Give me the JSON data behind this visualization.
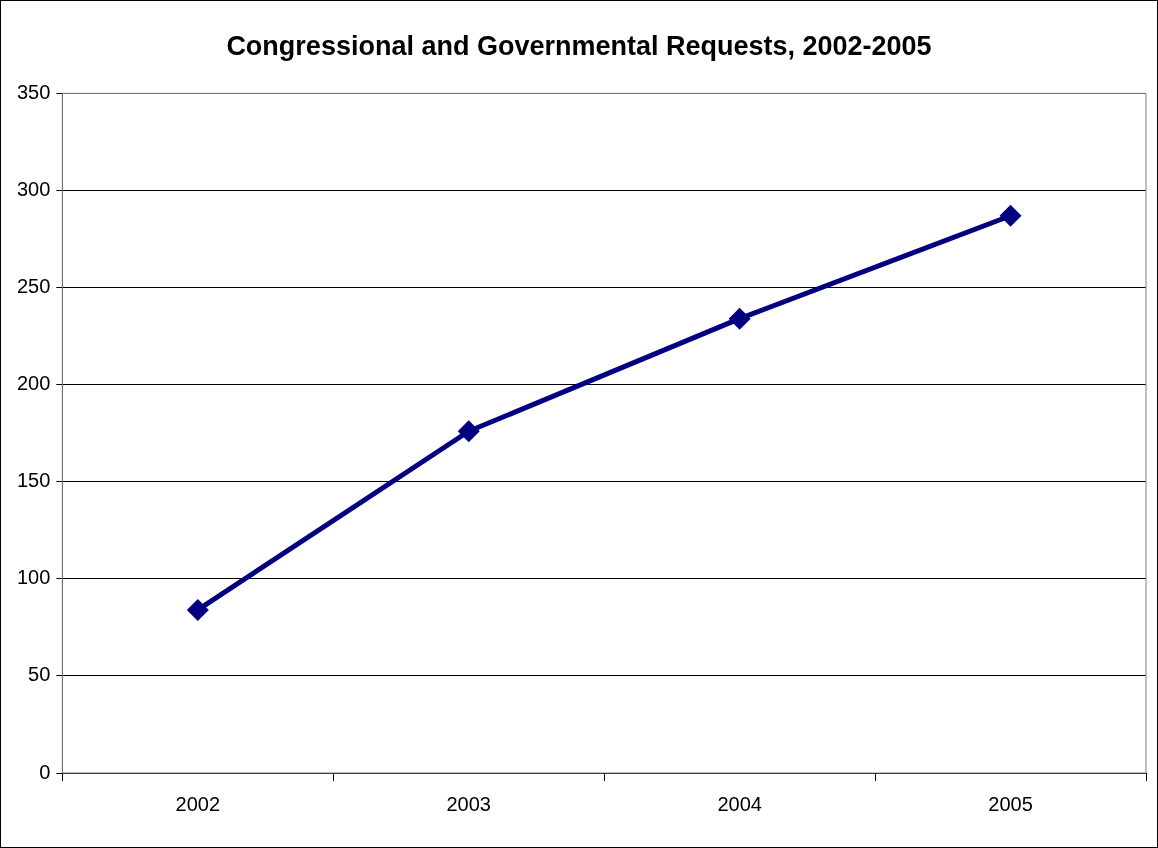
{
  "chart_data": {
    "type": "line",
    "title": "Congressional and Governmental Requests, 2002-2005",
    "categories": [
      "2002",
      "2003",
      "2004",
      "2005"
    ],
    "series": [
      {
        "color": "#000080",
        "values": [
          84,
          176,
          234,
          287
        ]
      }
    ],
    "ylim": [
      0,
      350
    ],
    "yticks": [
      0,
      50,
      100,
      150,
      200,
      250,
      300,
      350
    ],
    "grid": "y",
    "legend": false,
    "marker": "diamond",
    "line_style": "solid"
  }
}
